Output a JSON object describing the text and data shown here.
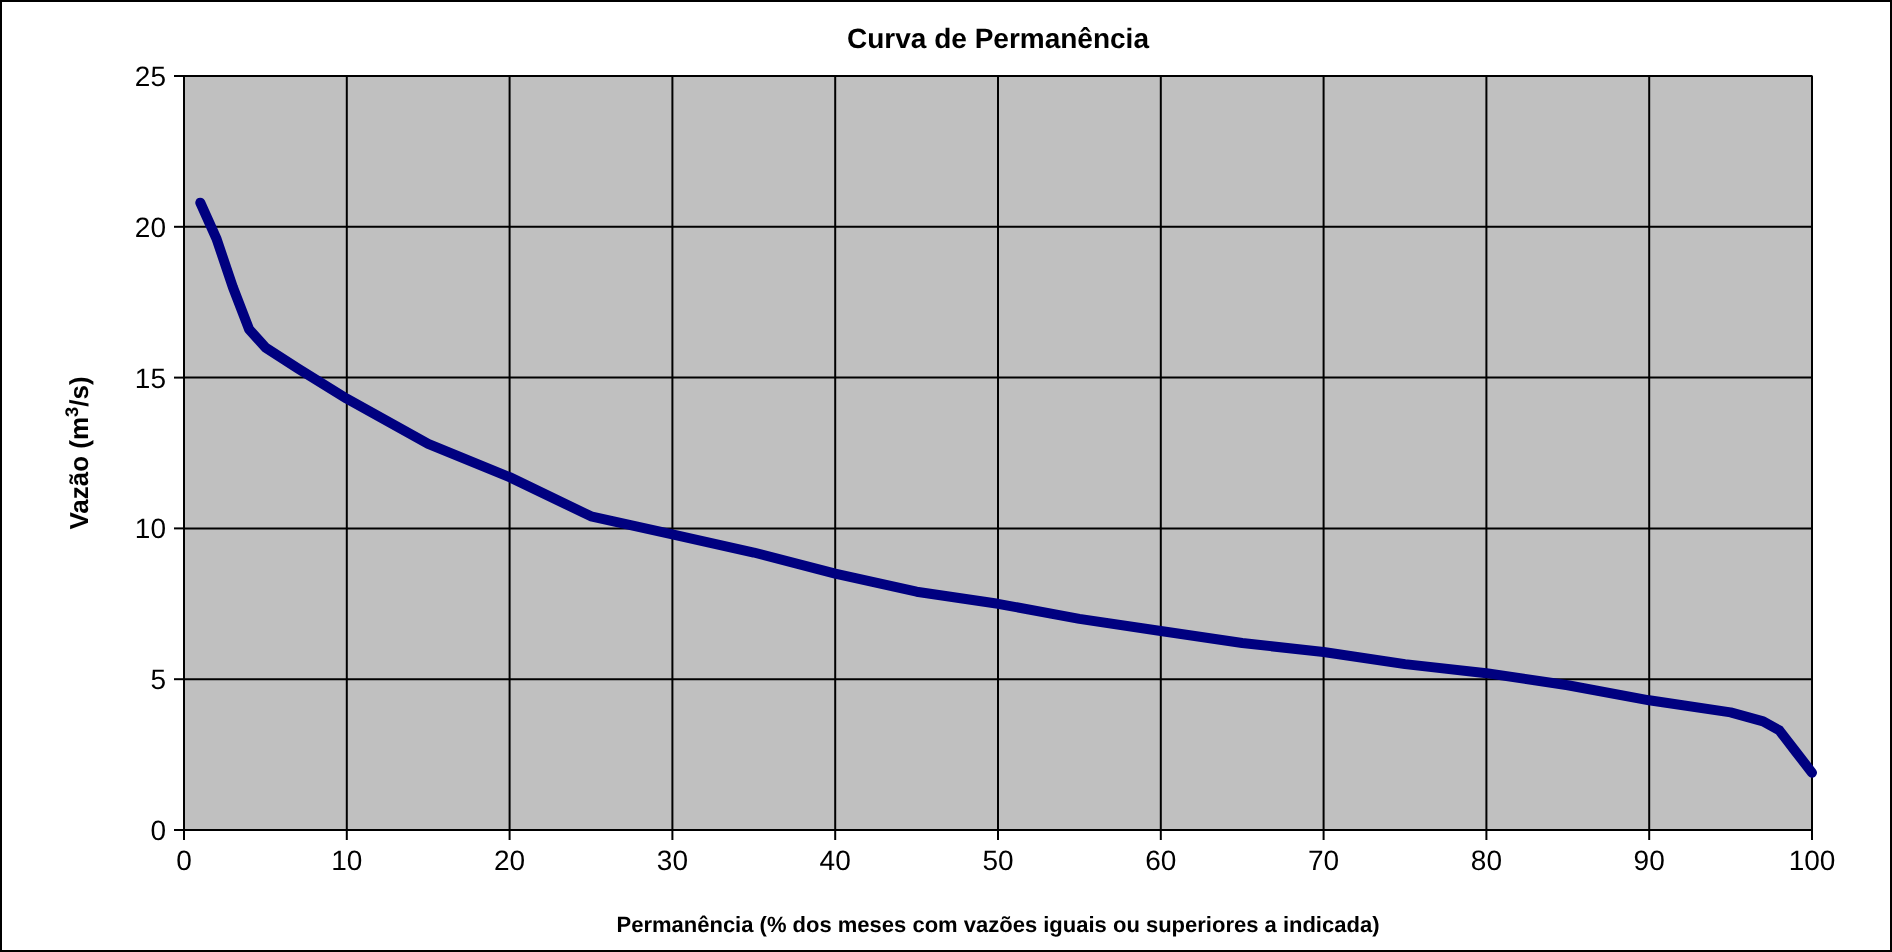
{
  "chart_data": {
    "type": "line",
    "title": "Curva de Permanência",
    "xlabel": "Permanência (% dos meses com vazões iguais ou superiores a indicada)",
    "ylabel": "Vazão (m$^{3}$/s)",
    "x": [
      1,
      2,
      3,
      4,
      5,
      7,
      10,
      15,
      20,
      25,
      30,
      35,
      40,
      45,
      50,
      55,
      60,
      65,
      70,
      75,
      80,
      85,
      90,
      95,
      97,
      98,
      99,
      100
    ],
    "series": [
      {
        "color": "#000080",
        "values": [
          20.8,
          19.6,
          18,
          16.6,
          16,
          15.3,
          14.3,
          12.8,
          11.7,
          10.4,
          9.8,
          9.2,
          8.5,
          7.9,
          7.5,
          7,
          6.6,
          6.2,
          5.9,
          5.5,
          5.2,
          4.8,
          4.3,
          3.9,
          3.6,
          3.3,
          2.6,
          1.9
        ]
      }
    ],
    "xlim": [
      0,
      100
    ],
    "xticks": [
      0,
      10,
      20,
      30,
      40,
      50,
      60,
      70,
      80,
      90,
      100
    ],
    "ylim": [
      0,
      25
    ],
    "yticks": [
      0,
      5,
      10,
      15,
      20,
      25
    ],
    "grid": true,
    "marker": "none",
    "line_style": "solid"
  }
}
